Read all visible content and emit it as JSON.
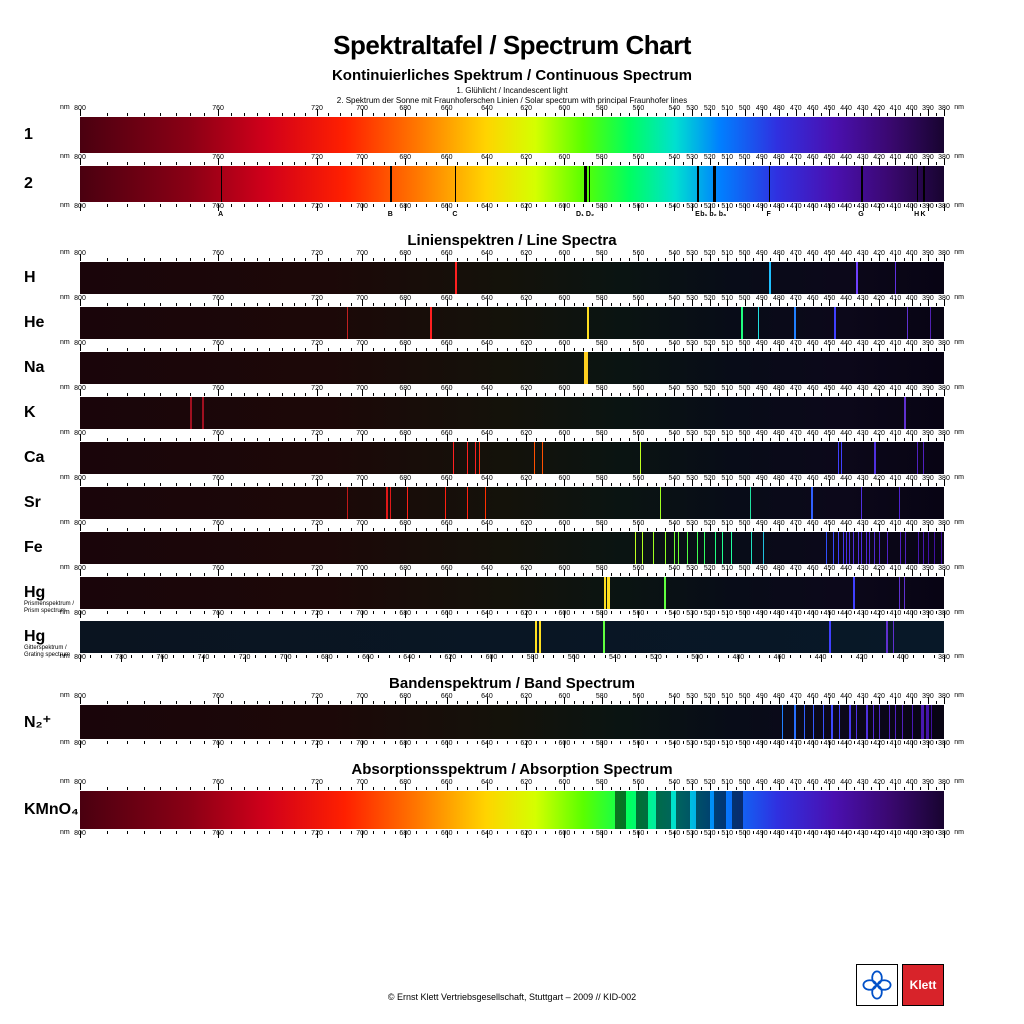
{
  "title": "Spektraltafel / Spectrum Chart",
  "sections": {
    "continuous": {
      "title": "Kontinuierliches Spektrum / Continuous Spectrum",
      "sub1": "1. Glühlicht / Incandescent light",
      "sub2": "2. Spektrum der Sonne mit Fraunhoferschen Linien / Solar spectrum with principal Fraunhofer lines"
    },
    "line": {
      "title": "Linienspektren / Line Spectra"
    },
    "band": {
      "title": "Bandenspektrum / Band Spectrum"
    },
    "absorption": {
      "title": "Absorptionsspektrum / Absorption Spectrum"
    }
  },
  "wavelength_range": {
    "min": 380,
    "max": 800
  },
  "scale_ticks": [
    800,
    760,
    720,
    700,
    680,
    660,
    640,
    620,
    600,
    580,
    560,
    540,
    530,
    520,
    510,
    500,
    490,
    480,
    470,
    460,
    450,
    440,
    430,
    420,
    410,
    400,
    390,
    380
  ],
  "fraunhofer": {
    "lines": [
      759,
      687,
      656,
      589.6,
      589.0,
      587,
      527,
      518,
      517,
      486,
      431,
      397,
      393
    ],
    "letters": [
      {
        "nm": 759,
        "t": "A"
      },
      {
        "nm": 687,
        "t": "B"
      },
      {
        "nm": 656,
        "t": "C"
      },
      {
        "nm": 589,
        "t": "D₁ D₂"
      },
      {
        "nm": 527,
        "t": "E"
      },
      {
        "nm": 518,
        "t": "b₁ b₂ b₃"
      },
      {
        "nm": 486,
        "t": "F"
      },
      {
        "nm": 431,
        "t": "G"
      },
      {
        "nm": 397,
        "t": "H"
      },
      {
        "nm": 393,
        "t": "K"
      }
    ]
  },
  "continuous_gradient": [
    {
      "p": 0,
      "c": "#4a0010"
    },
    {
      "p": 7,
      "c": "#8a0015"
    },
    {
      "p": 14,
      "c": "#d1001a"
    },
    {
      "p": 22,
      "c": "#ff2000"
    },
    {
      "p": 30,
      "c": "#ff7800"
    },
    {
      "p": 38,
      "c": "#ffd400"
    },
    {
      "p": 44,
      "c": "#d4ff00"
    },
    {
      "p": 50,
      "c": "#5aff00"
    },
    {
      "p": 56,
      "c": "#00ff60"
    },
    {
      "p": 62,
      "c": "#00e0d0"
    },
    {
      "p": 68,
      "c": "#0080ff"
    },
    {
      "p": 76,
      "c": "#3030e0"
    },
    {
      "p": 84,
      "c": "#4a10b0"
    },
    {
      "p": 92,
      "c": "#3a0870"
    },
    {
      "p": 100,
      "c": "#180430"
    }
  ],
  "dark_gradient": [
    {
      "p": 0,
      "c": "#1a050a"
    },
    {
      "p": 20,
      "c": "#1c0808"
    },
    {
      "p": 40,
      "c": "#14120a"
    },
    {
      "p": 55,
      "c": "#0a1412"
    },
    {
      "p": 70,
      "c": "#080c18"
    },
    {
      "p": 85,
      "c": "#0c081a"
    },
    {
      "p": 100,
      "c": "#080414"
    }
  ],
  "hg_grating_bg": [
    {
      "p": 0,
      "c": "#0a1420"
    },
    {
      "p": 100,
      "c": "#081828"
    }
  ],
  "elements": [
    {
      "label": "H",
      "lines": [
        {
          "nm": 656,
          "c": "#ff2020",
          "w": 2.5
        },
        {
          "nm": 486,
          "c": "#20c0ff",
          "w": 2
        },
        {
          "nm": 434,
          "c": "#7040ff",
          "w": 1.5
        },
        {
          "nm": 410,
          "c": "#6030e0",
          "w": 1
        }
      ]
    },
    {
      "label": "He",
      "lines": [
        {
          "nm": 707,
          "c": "#c02020",
          "w": 1.5
        },
        {
          "nm": 668,
          "c": "#ff2020",
          "w": 2
        },
        {
          "nm": 588,
          "c": "#ffe020",
          "w": 2.5
        },
        {
          "nm": 502,
          "c": "#20ff80",
          "w": 1.5
        },
        {
          "nm": 492,
          "c": "#20e0e0",
          "w": 1
        },
        {
          "nm": 471,
          "c": "#2080ff",
          "w": 1.5
        },
        {
          "nm": 447,
          "c": "#4040ff",
          "w": 2
        },
        {
          "nm": 403,
          "c": "#6030d0",
          "w": 1
        },
        {
          "nm": 389,
          "c": "#5020b0",
          "w": 1
        }
      ]
    },
    {
      "label": "Na",
      "lines": [
        {
          "nm": 589.6,
          "c": "#ffd020",
          "w": 2.5
        },
        {
          "nm": 589.0,
          "c": "#ffd020",
          "w": 2.5
        }
      ]
    },
    {
      "label": "K",
      "lines": [
        {
          "nm": 770,
          "c": "#a01020",
          "w": 2
        },
        {
          "nm": 766,
          "c": "#a01020",
          "w": 2
        },
        {
          "nm": 405,
          "c": "#6030d0",
          "w": 1
        },
        {
          "nm": 404,
          "c": "#6030d0",
          "w": 1
        }
      ]
    },
    {
      "label": "Ca",
      "lines": [
        {
          "nm": 657,
          "c": "#ff2020",
          "w": 1
        },
        {
          "nm": 650,
          "c": "#ff2020",
          "w": 1
        },
        {
          "nm": 646,
          "c": "#ff2020",
          "w": 1
        },
        {
          "nm": 644,
          "c": "#ff3010",
          "w": 1
        },
        {
          "nm": 616,
          "c": "#ff5000",
          "w": 1
        },
        {
          "nm": 612,
          "c": "#ff5000",
          "w": 1
        },
        {
          "nm": 559,
          "c": "#c0ff20",
          "w": 1
        },
        {
          "nm": 445,
          "c": "#4040ff",
          "w": 1.5
        },
        {
          "nm": 443,
          "c": "#4040ff",
          "w": 1
        },
        {
          "nm": 423,
          "c": "#5030e0",
          "w": 1.5
        },
        {
          "nm": 397,
          "c": "#5020c0",
          "w": 1
        },
        {
          "nm": 393,
          "c": "#5020c0",
          "w": 1
        }
      ]
    },
    {
      "label": "Sr",
      "lines": [
        {
          "nm": 707,
          "c": "#c01818",
          "w": 1.5
        },
        {
          "nm": 689,
          "c": "#e01818",
          "w": 1.5
        },
        {
          "nm": 687,
          "c": "#e01818",
          "w": 1
        },
        {
          "nm": 679,
          "c": "#ff2018",
          "w": 1
        },
        {
          "nm": 661,
          "c": "#ff2010",
          "w": 1.5
        },
        {
          "nm": 650,
          "c": "#ff2010",
          "w": 1
        },
        {
          "nm": 641,
          "c": "#ff3000",
          "w": 1
        },
        {
          "nm": 548,
          "c": "#a0ff20",
          "w": 0.8
        },
        {
          "nm": 497,
          "c": "#20e0a0",
          "w": 0.8
        },
        {
          "nm": 461,
          "c": "#3060ff",
          "w": 2
        },
        {
          "nm": 431,
          "c": "#5030e0",
          "w": 1
        },
        {
          "nm": 408,
          "c": "#5020d0",
          "w": 1
        }
      ]
    },
    {
      "label": "Fe",
      "dense": true,
      "lines": [
        {
          "nm": 562,
          "c": "#c0ff20",
          "w": 0.6
        },
        {
          "nm": 558,
          "c": "#b0ff20",
          "w": 0.6
        },
        {
          "nm": 552,
          "c": "#a0ff20",
          "w": 0.8
        },
        {
          "nm": 545,
          "c": "#90ff20",
          "w": 0.6
        },
        {
          "nm": 540,
          "c": "#70ff30",
          "w": 1
        },
        {
          "nm": 538,
          "c": "#70ff30",
          "w": 0.6
        },
        {
          "nm": 533,
          "c": "#50ff40",
          "w": 0.8
        },
        {
          "nm": 527,
          "c": "#40ff50",
          "w": 1
        },
        {
          "nm": 523,
          "c": "#30ff60",
          "w": 0.6
        },
        {
          "nm": 517,
          "c": "#20ff80",
          "w": 1
        },
        {
          "nm": 513,
          "c": "#20ff90",
          "w": 0.6
        },
        {
          "nm": 508,
          "c": "#20ffa0",
          "w": 0.6
        },
        {
          "nm": 496,
          "c": "#20e0c0",
          "w": 0.6
        },
        {
          "nm": 489,
          "c": "#20c0e0",
          "w": 0.8
        },
        {
          "nm": 452,
          "c": "#3050ff",
          "w": 0.5
        },
        {
          "nm": 448,
          "c": "#3848ff",
          "w": 0.5
        },
        {
          "nm": 445,
          "c": "#4040ff",
          "w": 0.6
        },
        {
          "nm": 442,
          "c": "#4438f0",
          "w": 0.5
        },
        {
          "nm": 440,
          "c": "#4830f0",
          "w": 0.6
        },
        {
          "nm": 438,
          "c": "#4c30e8",
          "w": 0.8
        },
        {
          "nm": 436,
          "c": "#5030e0",
          "w": 0.5
        },
        {
          "nm": 433,
          "c": "#5030e0",
          "w": 0.6
        },
        {
          "nm": 431,
          "c": "#5030e0",
          "w": 0.8
        },
        {
          "nm": 428,
          "c": "#5028d8",
          "w": 0.5
        },
        {
          "nm": 426,
          "c": "#5028d8",
          "w": 0.6
        },
        {
          "nm": 423,
          "c": "#5028d0",
          "w": 0.5
        },
        {
          "nm": 420,
          "c": "#5020d0",
          "w": 0.6
        },
        {
          "nm": 415,
          "c": "#5020c8",
          "w": 0.5
        },
        {
          "nm": 407,
          "c": "#5020c0",
          "w": 0.6
        },
        {
          "nm": 404,
          "c": "#5020c0",
          "w": 0.6
        },
        {
          "nm": 396,
          "c": "#4818b0",
          "w": 0.5
        },
        {
          "nm": 393,
          "c": "#4818b0",
          "w": 0.5
        },
        {
          "nm": 390,
          "c": "#4010a8",
          "w": 0.5
        },
        {
          "nm": 386,
          "c": "#4010a0",
          "w": 0.6
        },
        {
          "nm": 382,
          "c": "#380898",
          "w": 0.5
        }
      ]
    },
    {
      "label": "Hg",
      "sublabel": "Prismenspektrum / Prism spectrum",
      "lines": [
        {
          "nm": 579,
          "c": "#ffe020",
          "w": 2.5
        },
        {
          "nm": 577,
          "c": "#ffe020",
          "w": 2.5
        },
        {
          "nm": 546,
          "c": "#60ff40",
          "w": 2.5
        },
        {
          "nm": 436,
          "c": "#4040ff",
          "w": 2
        },
        {
          "nm": 408,
          "c": "#6030d0",
          "w": 1.5
        },
        {
          "nm": 405,
          "c": "#6030d0",
          "w": 1.5
        }
      ]
    },
    {
      "label": "Hg",
      "sublabel": "Gitterspektrum / Grating spectrum",
      "bg": "hg_grating_bg",
      "special_scale": "hg_grating",
      "lines": [
        {
          "nm": 579,
          "c": "#ffe020",
          "w": 2.5
        },
        {
          "nm": 577,
          "c": "#ffe020",
          "w": 2.5
        },
        {
          "nm": 546,
          "c": "#60ff40",
          "w": 2.5
        },
        {
          "nm": 436,
          "c": "#4040ff",
          "w": 2
        },
        {
          "nm": 408,
          "c": "#6030d0",
          "w": 1.5
        },
        {
          "nm": 405,
          "c": "#6030d0",
          "w": 1.5
        }
      ]
    }
  ],
  "hg_grating_scale": [
    800,
    780,
    760,
    740,
    720,
    700,
    680,
    660,
    640,
    620,
    600,
    580,
    560,
    540,
    520,
    500,
    480,
    460,
    440,
    420,
    400,
    380
  ],
  "n2_lines": [
    {
      "nm": 478,
      "c": "#2080ff",
      "w": 1
    },
    {
      "nm": 471,
      "c": "#2870ff",
      "w": 1.5
    },
    {
      "nm": 465,
      "c": "#3060ff",
      "w": 1
    },
    {
      "nm": 460,
      "c": "#3458ff",
      "w": 1.5
    },
    {
      "nm": 454,
      "c": "#3850ff",
      "w": 1
    },
    {
      "nm": 449,
      "c": "#3c48ff",
      "w": 1.5
    },
    {
      "nm": 444,
      "c": "#4040ff",
      "w": 1
    },
    {
      "nm": 438,
      "c": "#4838f0",
      "w": 1.5
    },
    {
      "nm": 434,
      "c": "#5030e8",
      "w": 1
    },
    {
      "nm": 428,
      "c": "#5030e0",
      "w": 2
    },
    {
      "nm": 424,
      "c": "#5028d8",
      "w": 1.5
    },
    {
      "nm": 420,
      "c": "#5028d0",
      "w": 1
    },
    {
      "nm": 414,
      "c": "#5020c8",
      "w": 1.5
    },
    {
      "nm": 410,
      "c": "#5020c4",
      "w": 1
    },
    {
      "nm": 406,
      "c": "#5020c0",
      "w": 1.5
    },
    {
      "nm": 400,
      "c": "#4818b8",
      "w": 1
    },
    {
      "nm": 394,
      "c": "#4818b0",
      "w": 2.5
    },
    {
      "nm": 391,
      "c": "#4414a8",
      "w": 2.5
    },
    {
      "nm": 388,
      "c": "#4010a0",
      "w": 1
    }
  ],
  "n2_label": "N₂⁺",
  "kmno4": {
    "label": "KMnO₄",
    "bands": [
      {
        "nm": 570,
        "w": 6
      },
      {
        "nm": 558,
        "w": 7
      },
      {
        "nm": 546,
        "w": 8
      },
      {
        "nm": 535,
        "w": 8
      },
      {
        "nm": 524,
        "w": 8
      },
      {
        "nm": 514,
        "w": 7
      },
      {
        "nm": 504,
        "w": 6
      }
    ]
  },
  "footer": "© Ernst Klett  Vertriebsgesellschaft, Stuttgart – 2009 // KID-002",
  "logo_text": "Klett"
}
